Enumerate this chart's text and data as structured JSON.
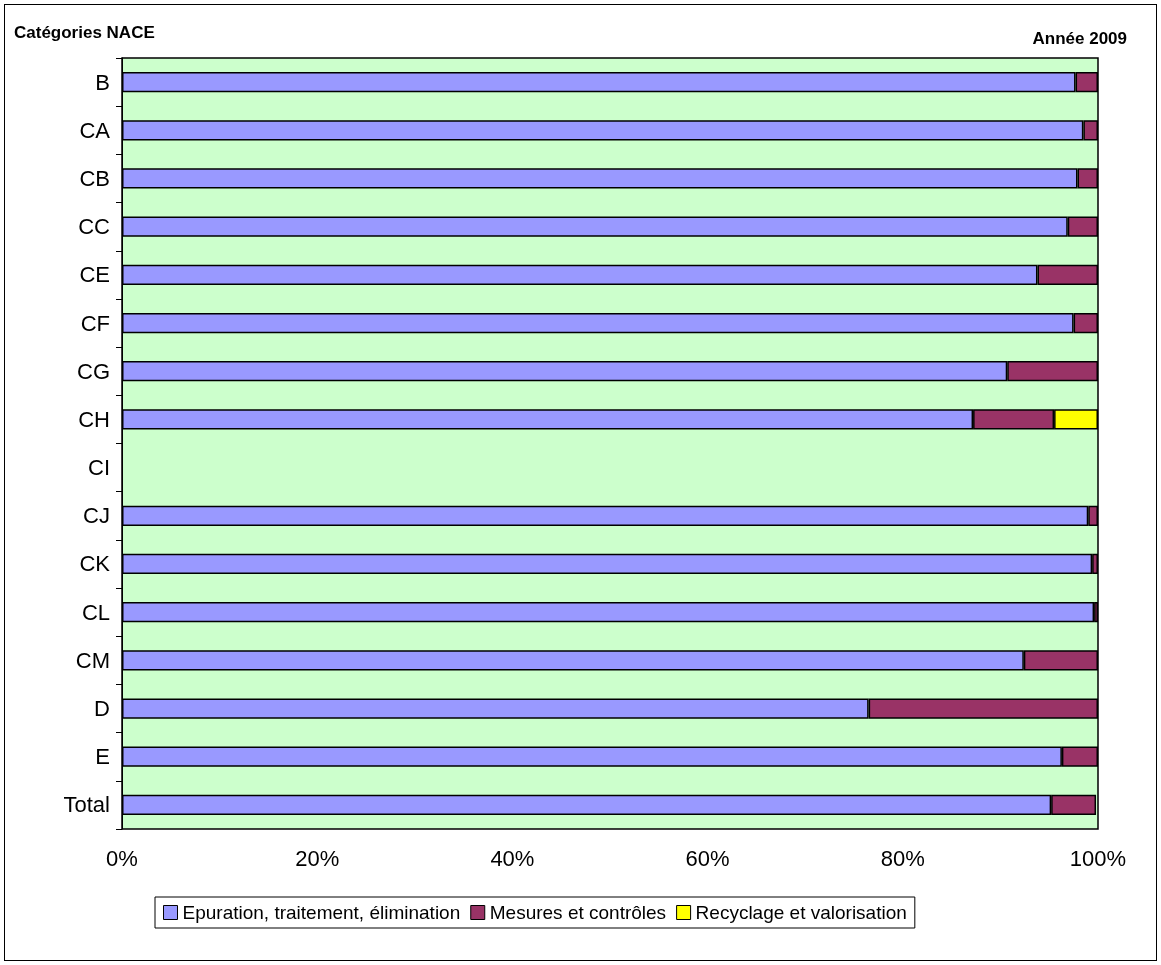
{
  "chart_data": {
    "type": "bar",
    "orientation": "horizontal",
    "stacked": true,
    "title": "Année 2009",
    "ylabel": "Catégories NACE",
    "categories": [
      "B",
      "CA",
      "CB",
      "CC",
      "CE",
      "CF",
      "CG",
      "CH",
      "CI",
      "CJ",
      "CK",
      "CL",
      "CM",
      "D",
      "E",
      "Total"
    ],
    "series": [
      {
        "name": "Epuration, traitement, élimination",
        "color": "#9999ff",
        "values": [
          97.7,
          98.5,
          97.9,
          96.9,
          93.8,
          97.5,
          90.7,
          87.2,
          null,
          99.0,
          99.4,
          99.6,
          92.4,
          76.5,
          96.3,
          95.2
        ]
      },
      {
        "name": "Mesures et contrôles",
        "color": "#993366",
        "values": [
          2.3,
          1.5,
          2.1,
          3.1,
          6.2,
          2.5,
          9.3,
          8.3,
          null,
          1.0,
          0.6,
          0.4,
          7.6,
          23.5,
          3.7,
          4.6
        ]
      },
      {
        "name": "Recyclage et valorisation",
        "color": "#ffff00",
        "values": [
          null,
          null,
          null,
          null,
          null,
          null,
          null,
          4.5,
          null,
          null,
          null,
          null,
          null,
          null,
          null,
          null
        ]
      }
    ],
    "xlim": [
      0,
      100
    ],
    "xticks": [
      {
        "value": 0,
        "label": "0%"
      },
      {
        "value": 20,
        "label": "20%"
      },
      {
        "value": 40,
        "label": "40%"
      },
      {
        "value": 60,
        "label": "60%"
      },
      {
        "value": 80,
        "label": "80%"
      },
      {
        "value": 100,
        "label": "100%"
      }
    ],
    "grid": false,
    "legend": "bottom"
  }
}
